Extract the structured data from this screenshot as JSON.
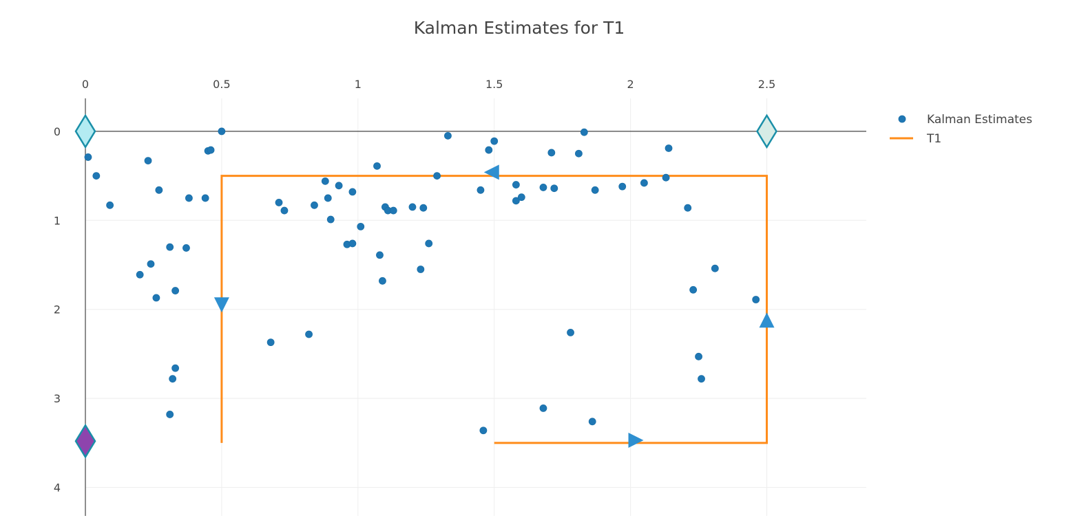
{
  "chart_data": {
    "type": "scatter",
    "title": "Kalman Estimates for T1",
    "xlabel": "",
    "ylabel": "",
    "xlim": [
      0,
      2.87
    ],
    "ylim": [
      4.2,
      -0.37
    ],
    "x_ticks": [
      "0",
      "0.5",
      "1",
      "1.5",
      "2",
      "2.5"
    ],
    "x_tick_values": [
      0,
      0.5,
      1,
      1.5,
      2,
      2.5
    ],
    "y_ticks": [
      "0",
      "1",
      "2",
      "3",
      "4"
    ],
    "y_tick_values": [
      0,
      1,
      2,
      3,
      4
    ],
    "x_axis_position": "top",
    "y_axis_reversed": true,
    "grid": true,
    "legend_position": "top-right",
    "series": [
      {
        "name": "Kalman Estimates",
        "mode": "markers",
        "color": "#1f77b4",
        "x": [
          0.01,
          0.04,
          0.09,
          0.23,
          0.27,
          0.2,
          0.24,
          0.26,
          0.31,
          0.37,
          0.33,
          0.33,
          0.32,
          0.31,
          0.38,
          0.44,
          0.45,
          0.46,
          0.5,
          0.68,
          0.71,
          0.73,
          0.82,
          0.84,
          0.88,
          0.89,
          0.9,
          0.93,
          0.96,
          0.98,
          0.98,
          1.01,
          1.07,
          1.08,
          1.09,
          1.1,
          1.11,
          1.13,
          1.2,
          1.23,
          1.24,
          1.26,
          1.29,
          1.33,
          1.45,
          1.46,
          1.48,
          1.5,
          1.58,
          1.58,
          1.6,
          1.68,
          1.68,
          1.71,
          1.72,
          1.78,
          1.81,
          1.83,
          1.86,
          1.87,
          1.97,
          2.05,
          2.13,
          2.14,
          2.21,
          2.23,
          2.25,
          2.26,
          2.31,
          2.46
        ],
        "y": [
          0.29,
          0.5,
          0.83,
          0.33,
          0.66,
          1.61,
          1.49,
          1.87,
          1.3,
          1.31,
          1.79,
          2.66,
          2.78,
          3.18,
          0.75,
          0.75,
          0.22,
          0.21,
          0.0,
          2.37,
          0.8,
          0.89,
          2.28,
          0.83,
          0.56,
          0.75,
          0.99,
          0.61,
          1.27,
          0.68,
          1.26,
          1.07,
          0.39,
          1.39,
          1.68,
          0.85,
          0.89,
          0.89,
          0.85,
          1.55,
          0.86,
          1.26,
          0.5,
          0.05,
          0.66,
          3.36,
          0.21,
          0.11,
          0.6,
          0.78,
          0.74,
          3.11,
          0.63,
          0.24,
          0.64,
          2.26,
          0.25,
          0.01,
          3.26,
          0.66,
          0.62,
          0.58,
          0.52,
          0.19,
          0.86,
          1.78,
          2.53,
          2.78,
          1.54,
          1.89
        ]
      },
      {
        "name": "T1",
        "mode": "lines",
        "color": "#ff8c1a",
        "segments": [
          {
            "x": [
              0.5,
              0.5,
              2.5,
              2.5,
              1.5
            ],
            "y": [
              3.5,
              0.5,
              0.5,
              3.5,
              3.5
            ]
          }
        ]
      }
    ],
    "direction_arrows": [
      {
        "x": 0.5,
        "y": 1.95,
        "direction": "down",
        "color": "#2e8fd0"
      },
      {
        "x": 1.49,
        "y": 0.46,
        "direction": "left",
        "color": "#2e8fd0"
      },
      {
        "x": 2.5,
        "y": 2.12,
        "direction": "up",
        "color": "#2e8fd0"
      },
      {
        "x": 2.02,
        "y": 3.47,
        "direction": "right",
        "color": "#2e8fd0"
      }
    ],
    "waypoint_markers": [
      {
        "x": 0,
        "y": 0,
        "fill": "#b3ebf2",
        "stroke": "#1a8fa8"
      },
      {
        "x": 2.5,
        "y": 0,
        "fill": "#d6ece6",
        "stroke": "#1a8fa8"
      },
      {
        "x": 0,
        "y": 3.48,
        "fill": "#8e44ad",
        "stroke": "#1a8fa8"
      }
    ]
  }
}
